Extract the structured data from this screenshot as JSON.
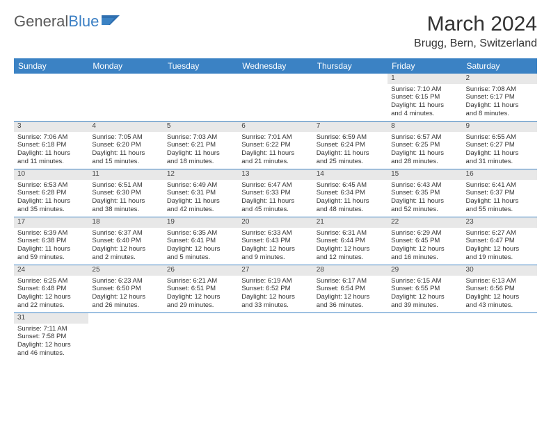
{
  "logo": {
    "text1": "General",
    "text2": "Blue"
  },
  "title": "March 2024",
  "location": "Brugg, Bern, Switzerland",
  "colors": {
    "header_bg": "#3b82c4",
    "header_text": "#ffffff",
    "daynum_bg": "#e8e8e8",
    "border": "#3b82c4",
    "text": "#333333",
    "logo_gray": "#5a5a5a",
    "logo_blue": "#3b7fc4"
  },
  "dayNames": [
    "Sunday",
    "Monday",
    "Tuesday",
    "Wednesday",
    "Thursday",
    "Friday",
    "Saturday"
  ],
  "weeks": [
    [
      {
        "empty": true
      },
      {
        "empty": true
      },
      {
        "empty": true
      },
      {
        "empty": true
      },
      {
        "empty": true
      },
      {
        "n": "1",
        "sr": "Sunrise: 7:10 AM",
        "ss": "Sunset: 6:15 PM",
        "d1": "Daylight: 11 hours",
        "d2": "and 4 minutes."
      },
      {
        "n": "2",
        "sr": "Sunrise: 7:08 AM",
        "ss": "Sunset: 6:17 PM",
        "d1": "Daylight: 11 hours",
        "d2": "and 8 minutes."
      }
    ],
    [
      {
        "n": "3",
        "sr": "Sunrise: 7:06 AM",
        "ss": "Sunset: 6:18 PM",
        "d1": "Daylight: 11 hours",
        "d2": "and 11 minutes."
      },
      {
        "n": "4",
        "sr": "Sunrise: 7:05 AM",
        "ss": "Sunset: 6:20 PM",
        "d1": "Daylight: 11 hours",
        "d2": "and 15 minutes."
      },
      {
        "n": "5",
        "sr": "Sunrise: 7:03 AM",
        "ss": "Sunset: 6:21 PM",
        "d1": "Daylight: 11 hours",
        "d2": "and 18 minutes."
      },
      {
        "n": "6",
        "sr": "Sunrise: 7:01 AM",
        "ss": "Sunset: 6:22 PM",
        "d1": "Daylight: 11 hours",
        "d2": "and 21 minutes."
      },
      {
        "n": "7",
        "sr": "Sunrise: 6:59 AM",
        "ss": "Sunset: 6:24 PM",
        "d1": "Daylight: 11 hours",
        "d2": "and 25 minutes."
      },
      {
        "n": "8",
        "sr": "Sunrise: 6:57 AM",
        "ss": "Sunset: 6:25 PM",
        "d1": "Daylight: 11 hours",
        "d2": "and 28 minutes."
      },
      {
        "n": "9",
        "sr": "Sunrise: 6:55 AM",
        "ss": "Sunset: 6:27 PM",
        "d1": "Daylight: 11 hours",
        "d2": "and 31 minutes."
      }
    ],
    [
      {
        "n": "10",
        "sr": "Sunrise: 6:53 AM",
        "ss": "Sunset: 6:28 PM",
        "d1": "Daylight: 11 hours",
        "d2": "and 35 minutes."
      },
      {
        "n": "11",
        "sr": "Sunrise: 6:51 AM",
        "ss": "Sunset: 6:30 PM",
        "d1": "Daylight: 11 hours",
        "d2": "and 38 minutes."
      },
      {
        "n": "12",
        "sr": "Sunrise: 6:49 AM",
        "ss": "Sunset: 6:31 PM",
        "d1": "Daylight: 11 hours",
        "d2": "and 42 minutes."
      },
      {
        "n": "13",
        "sr": "Sunrise: 6:47 AM",
        "ss": "Sunset: 6:33 PM",
        "d1": "Daylight: 11 hours",
        "d2": "and 45 minutes."
      },
      {
        "n": "14",
        "sr": "Sunrise: 6:45 AM",
        "ss": "Sunset: 6:34 PM",
        "d1": "Daylight: 11 hours",
        "d2": "and 48 minutes."
      },
      {
        "n": "15",
        "sr": "Sunrise: 6:43 AM",
        "ss": "Sunset: 6:35 PM",
        "d1": "Daylight: 11 hours",
        "d2": "and 52 minutes."
      },
      {
        "n": "16",
        "sr": "Sunrise: 6:41 AM",
        "ss": "Sunset: 6:37 PM",
        "d1": "Daylight: 11 hours",
        "d2": "and 55 minutes."
      }
    ],
    [
      {
        "n": "17",
        "sr": "Sunrise: 6:39 AM",
        "ss": "Sunset: 6:38 PM",
        "d1": "Daylight: 11 hours",
        "d2": "and 59 minutes."
      },
      {
        "n": "18",
        "sr": "Sunrise: 6:37 AM",
        "ss": "Sunset: 6:40 PM",
        "d1": "Daylight: 12 hours",
        "d2": "and 2 minutes."
      },
      {
        "n": "19",
        "sr": "Sunrise: 6:35 AM",
        "ss": "Sunset: 6:41 PM",
        "d1": "Daylight: 12 hours",
        "d2": "and 5 minutes."
      },
      {
        "n": "20",
        "sr": "Sunrise: 6:33 AM",
        "ss": "Sunset: 6:43 PM",
        "d1": "Daylight: 12 hours",
        "d2": "and 9 minutes."
      },
      {
        "n": "21",
        "sr": "Sunrise: 6:31 AM",
        "ss": "Sunset: 6:44 PM",
        "d1": "Daylight: 12 hours",
        "d2": "and 12 minutes."
      },
      {
        "n": "22",
        "sr": "Sunrise: 6:29 AM",
        "ss": "Sunset: 6:45 PM",
        "d1": "Daylight: 12 hours",
        "d2": "and 16 minutes."
      },
      {
        "n": "23",
        "sr": "Sunrise: 6:27 AM",
        "ss": "Sunset: 6:47 PM",
        "d1": "Daylight: 12 hours",
        "d2": "and 19 minutes."
      }
    ],
    [
      {
        "n": "24",
        "sr": "Sunrise: 6:25 AM",
        "ss": "Sunset: 6:48 PM",
        "d1": "Daylight: 12 hours",
        "d2": "and 22 minutes."
      },
      {
        "n": "25",
        "sr": "Sunrise: 6:23 AM",
        "ss": "Sunset: 6:50 PM",
        "d1": "Daylight: 12 hours",
        "d2": "and 26 minutes."
      },
      {
        "n": "26",
        "sr": "Sunrise: 6:21 AM",
        "ss": "Sunset: 6:51 PM",
        "d1": "Daylight: 12 hours",
        "d2": "and 29 minutes."
      },
      {
        "n": "27",
        "sr": "Sunrise: 6:19 AM",
        "ss": "Sunset: 6:52 PM",
        "d1": "Daylight: 12 hours",
        "d2": "and 33 minutes."
      },
      {
        "n": "28",
        "sr": "Sunrise: 6:17 AM",
        "ss": "Sunset: 6:54 PM",
        "d1": "Daylight: 12 hours",
        "d2": "and 36 minutes."
      },
      {
        "n": "29",
        "sr": "Sunrise: 6:15 AM",
        "ss": "Sunset: 6:55 PM",
        "d1": "Daylight: 12 hours",
        "d2": "and 39 minutes."
      },
      {
        "n": "30",
        "sr": "Sunrise: 6:13 AM",
        "ss": "Sunset: 6:56 PM",
        "d1": "Daylight: 12 hours",
        "d2": "and 43 minutes."
      }
    ],
    [
      {
        "n": "31",
        "sr": "Sunrise: 7:11 AM",
        "ss": "Sunset: 7:58 PM",
        "d1": "Daylight: 12 hours",
        "d2": "and 46 minutes."
      },
      {
        "empty": true
      },
      {
        "empty": true
      },
      {
        "empty": true
      },
      {
        "empty": true
      },
      {
        "empty": true
      },
      {
        "empty": true
      }
    ]
  ]
}
